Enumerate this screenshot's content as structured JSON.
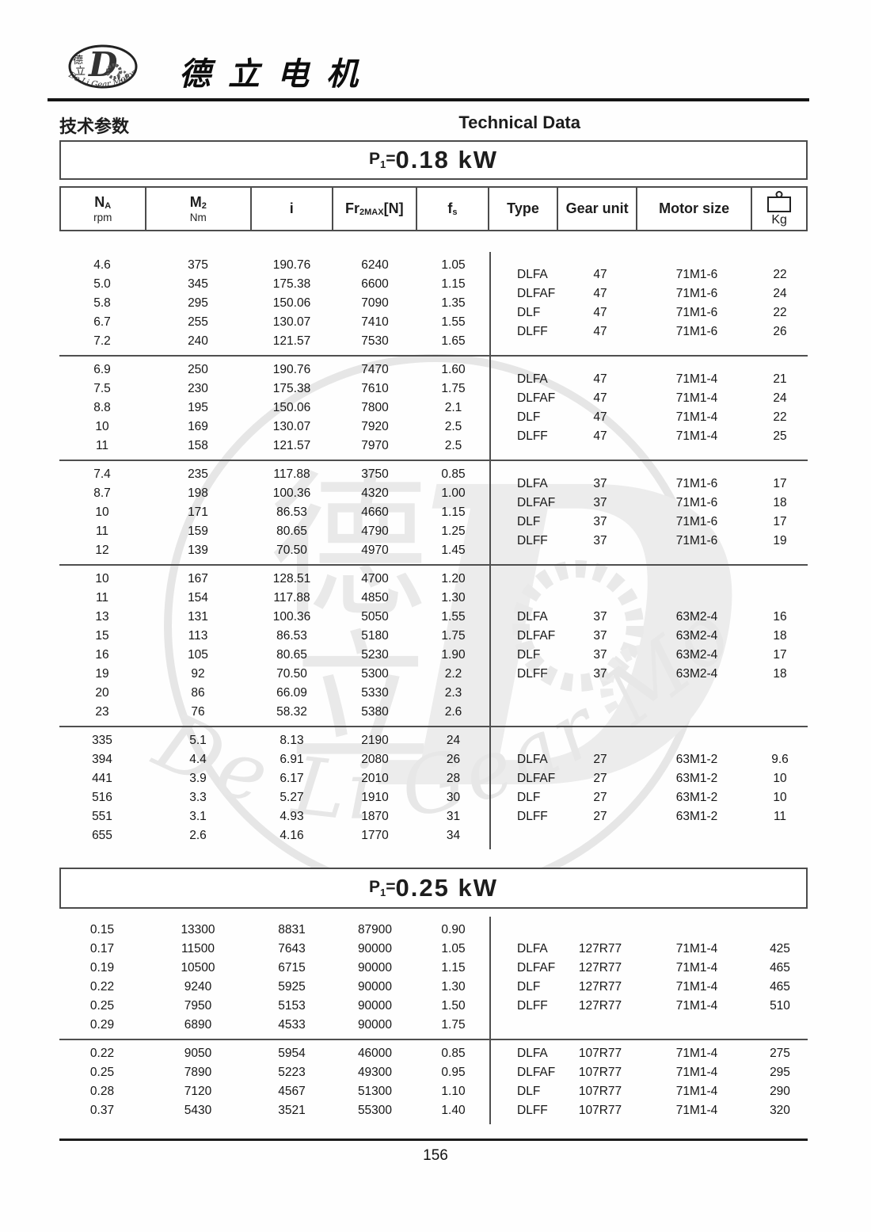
{
  "brand": {
    "name_cn": "德立电机",
    "logo": {
      "letter": "D",
      "char_top": "德",
      "char_bottom": "立",
      "arc_text": "De Li Gear Motor"
    }
  },
  "header": {
    "title_cn": "技术参数",
    "title_en": "Technical Data"
  },
  "table_columns": [
    {
      "main": "N",
      "sub": "A",
      "unit": "rpm"
    },
    {
      "main": "M",
      "sub": "2",
      "unit": "Nm"
    },
    {
      "main": "i",
      "sub": "",
      "unit": ""
    },
    {
      "main": "Fr",
      "sub": "2MAX",
      "suffix": "[N]",
      "unit": ""
    },
    {
      "main": "f",
      "sub": "s",
      "unit": ""
    },
    {
      "main": "Type",
      "sub": "",
      "unit": ""
    },
    {
      "main": "Gear unit",
      "sub": "",
      "unit": ""
    },
    {
      "main": "Motor size",
      "sub": "",
      "unit": ""
    },
    {
      "main": "Kg",
      "sub": "",
      "unit": "",
      "icon": "weight-icon"
    }
  ],
  "tables": [
    {
      "power": {
        "prefix": "P",
        "sub": "1",
        "eq": "=",
        "value": "0.18 kW"
      },
      "groups": [
        {
          "rows": [
            [
              "4.6",
              "375",
              "190.76",
              "6240",
              "1.05"
            ],
            [
              "5.0",
              "345",
              "175.38",
              "6600",
              "1.15"
            ],
            [
              "5.8",
              "295",
              "150.06",
              "7090",
              "1.35"
            ],
            [
              "6.7",
              "255",
              "130.07",
              "7410",
              "1.55"
            ],
            [
              "7.2",
              "240",
              "121.57",
              "7530",
              "1.65"
            ]
          ],
          "types": [
            [
              "DLFA",
              "47",
              "71M1-6",
              "22"
            ],
            [
              "DLFAF",
              "47",
              "71M1-6",
              "24"
            ],
            [
              "DLF",
              "47",
              "71M1-6",
              "22"
            ],
            [
              "DLFF",
              "47",
              "71M1-6",
              "26"
            ]
          ]
        },
        {
          "rows": [
            [
              "6.9",
              "250",
              "190.76",
              "7470",
              "1.60"
            ],
            [
              "7.5",
              "230",
              "175.38",
              "7610",
              "1.75"
            ],
            [
              "8.8",
              "195",
              "150.06",
              "7800",
              "2.1"
            ],
            [
              "10",
              "169",
              "130.07",
              "7920",
              "2.5"
            ],
            [
              "11",
              "158",
              "121.57",
              "7970",
              "2.5"
            ]
          ],
          "types": [
            [
              "DLFA",
              "47",
              "71M1-4",
              "21"
            ],
            [
              "DLFAF",
              "47",
              "71M1-4",
              "24"
            ],
            [
              "DLF",
              "47",
              "71M1-4",
              "22"
            ],
            [
              "DLFF",
              "47",
              "71M1-4",
              "25"
            ]
          ]
        },
        {
          "rows": [
            [
              "7.4",
              "235",
              "117.88",
              "3750",
              "0.85"
            ],
            [
              "8.7",
              "198",
              "100.36",
              "4320",
              "1.00"
            ],
            [
              "10",
              "171",
              "86.53",
              "4660",
              "1.15"
            ],
            [
              "11",
              "159",
              "80.65",
              "4790",
              "1.25"
            ],
            [
              "12",
              "139",
              "70.50",
              "4970",
              "1.45"
            ]
          ],
          "types": [
            [
              "DLFA",
              "37",
              "71M1-6",
              "17"
            ],
            [
              "DLFAF",
              "37",
              "71M1-6",
              "18"
            ],
            [
              "DLF",
              "37",
              "71M1-6",
              "17"
            ],
            [
              "DLFF",
              "37",
              "71M1-6",
              "19"
            ]
          ]
        },
        {
          "rows": [
            [
              "10",
              "167",
              "128.51",
              "4700",
              "1.20"
            ],
            [
              "11",
              "154",
              "117.88",
              "4850",
              "1.30"
            ],
            [
              "13",
              "131",
              "100.36",
              "5050",
              "1.55"
            ],
            [
              "15",
              "113",
              "86.53",
              "5180",
              "1.75"
            ],
            [
              "16",
              "105",
              "80.65",
              "5230",
              "1.90"
            ],
            [
              "19",
              "92",
              "70.50",
              "5300",
              "2.2"
            ],
            [
              "20",
              "86",
              "66.09",
              "5330",
              "2.3"
            ],
            [
              "23",
              "76",
              "58.32",
              "5380",
              "2.6"
            ]
          ],
          "types": [
            [
              "DLFA",
              "37",
              "63M2-4",
              "16"
            ],
            [
              "DLFAF",
              "37",
              "63M2-4",
              "18"
            ],
            [
              "DLF",
              "37",
              "63M2-4",
              "17"
            ],
            [
              "DLFF",
              "37",
              "63M2-4",
              "18"
            ]
          ]
        },
        {
          "rows": [
            [
              "335",
              "5.1",
              "8.13",
              "2190",
              "24"
            ],
            [
              "394",
              "4.4",
              "6.91",
              "2080",
              "26"
            ],
            [
              "441",
              "3.9",
              "6.17",
              "2010",
              "28"
            ],
            [
              "516",
              "3.3",
              "5.27",
              "1910",
              "30"
            ],
            [
              "551",
              "3.1",
              "4.93",
              "1870",
              "31"
            ],
            [
              "655",
              "2.6",
              "4.16",
              "1770",
              "34"
            ]
          ],
          "types": [
            [
              "DLFA",
              "27",
              "63M1-2",
              "9.6"
            ],
            [
              "DLFAF",
              "27",
              "63M1-2",
              "10"
            ],
            [
              "DLF",
              "27",
              "63M1-2",
              "10"
            ],
            [
              "DLFF",
              "27",
              "63M1-2",
              "11"
            ]
          ]
        }
      ]
    },
    {
      "power": {
        "prefix": "P",
        "sub": "1",
        "eq": "=",
        "value": "0.25 kW"
      },
      "groups": [
        {
          "rows": [
            [
              "0.15",
              "13300",
              "8831",
              "87900",
              "0.90"
            ],
            [
              "0.17",
              "11500",
              "7643",
              "90000",
              "1.05"
            ],
            [
              "0.19",
              "10500",
              "6715",
              "90000",
              "1.15"
            ],
            [
              "0.22",
              "9240",
              "5925",
              "90000",
              "1.30"
            ],
            [
              "0.25",
              "7950",
              "5153",
              "90000",
              "1.50"
            ],
            [
              "0.29",
              "6890",
              "4533",
              "90000",
              "1.75"
            ]
          ],
          "types": [
            [
              "DLFA",
              "127R77",
              "71M1-4",
              "425"
            ],
            [
              "DLFAF",
              "127R77",
              "71M1-4",
              "465"
            ],
            [
              "DLF",
              "127R77",
              "71M1-4",
              "465"
            ],
            [
              "DLFF",
              "127R77",
              "71M1-4",
              "510"
            ]
          ]
        },
        {
          "rows": [
            [
              "0.22",
              "9050",
              "5954",
              "46000",
              "0.85"
            ],
            [
              "0.25",
              "7890",
              "5223",
              "49300",
              "0.95"
            ],
            [
              "0.28",
              "7120",
              "4567",
              "51300",
              "1.10"
            ],
            [
              "0.37",
              "5430",
              "3521",
              "55300",
              "1.40"
            ]
          ],
          "types": [
            [
              "DLFA",
              "107R77",
              "71M1-4",
              "275"
            ],
            [
              "DLFAF",
              "107R77",
              "71M1-4",
              "295"
            ],
            [
              "DLF",
              "107R77",
              "71M1-4",
              "290"
            ],
            [
              "DLFF",
              "107R77",
              "71M1-4",
              "320"
            ]
          ]
        }
      ]
    }
  ],
  "watermark": {
    "letter": "D",
    "char_top": "德",
    "char_bottom": "立",
    "text": "De Li Gear Motor"
  },
  "footer": {
    "page_number": "156"
  }
}
